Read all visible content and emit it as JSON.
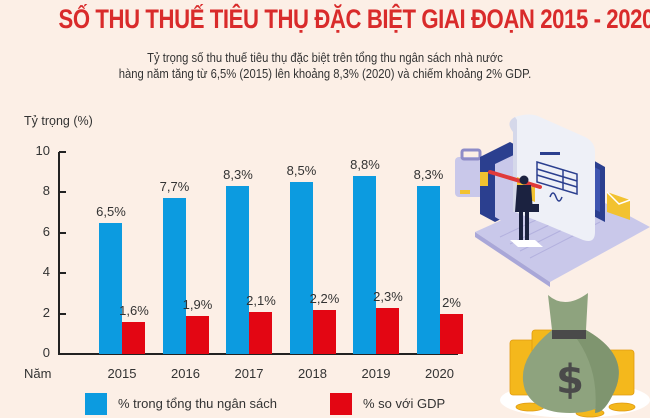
{
  "header": {
    "title": "SỐ THU THUẾ TIÊU THỤ ĐẶC BIỆT GIAI ĐOẠN 2015 - 2020",
    "subtitle_line1": "Tỷ trọng số thu thuế tiêu thụ đặc biệt trên tổng thu ngân sách nhà nước",
    "subtitle_line2": "hàng năm tăng từ 6,5% (2015) lên khoảng 8,3% (2020) và chiếm khoảng 2% GDP."
  },
  "colors": {
    "title": "#d92b2b",
    "background": "#fcefe6",
    "series_budget": "#0c9be0",
    "series_gdp": "#e30613"
  },
  "chart_data": {
    "type": "bar",
    "title": "SỐ THU THUẾ TIÊU THỤ ĐẶC BIỆT GIAI ĐOẠN 2015 - 2020",
    "xlabel": "Năm",
    "ylabel": "Tỷ trọng (%)",
    "ylim": [
      0,
      10
    ],
    "yticks": [
      "0",
      "2",
      "4",
      "6",
      "8",
      "10"
    ],
    "grid": false,
    "legend_position": "bottom",
    "categories": [
      "2015",
      "2016",
      "2017",
      "2018",
      "2019",
      "2020"
    ],
    "series": [
      {
        "name": "% trong tổng thu ngân sách",
        "color": "#0c9be0",
        "values": [
          6.5,
          7.7,
          8.3,
          8.5,
          8.8,
          8.3
        ],
        "labels": [
          "6,5%",
          "7,7%",
          "8,3%",
          "8,5%",
          "8,8%",
          "8,3%"
        ]
      },
      {
        "name": "% so với GDP",
        "color": "#e30613",
        "values": [
          1.6,
          1.9,
          2.1,
          2.2,
          2.3,
          2.0
        ],
        "labels": [
          "1,6%",
          "1,9%",
          "2,1%",
          "2,2%",
          "2,3%",
          "2%"
        ]
      }
    ]
  },
  "illustration": {
    "top": "laptop-document-businessman",
    "bottom": "money-bag-dollar-coins"
  }
}
